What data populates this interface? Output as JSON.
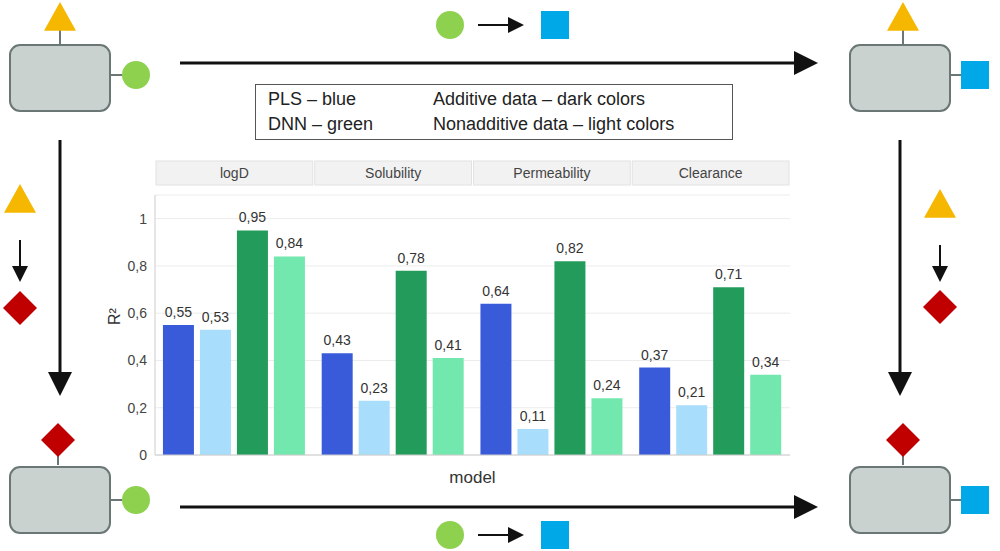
{
  "chart_data": {
    "type": "bar",
    "categories": [
      "logD",
      "Solubility",
      "Permeability",
      "Clearance"
    ],
    "x_label": "model",
    "y_label": "R²",
    "ylim": [
      0,
      1.1
    ],
    "yticks": [
      0,
      {
        "value": 0.2,
        "label": "0,2"
      },
      {
        "value": 0.4,
        "label": "0,4"
      },
      {
        "value": 0.6,
        "label": "0,6"
      },
      {
        "value": 0.8,
        "label": "0,8"
      },
      1
    ],
    "grid": true,
    "data_labels": true,
    "annotations": [
      "PLS – blue",
      "DNN – green",
      "Additive data – dark colors",
      "Nonadditive data – light colors"
    ],
    "series": [
      {
        "color": "#3A5BD9",
        "values": [
          0.55,
          0.43,
          0.64,
          0.37
        ],
        "value_labels": [
          "0,55",
          "0,43",
          "0,64",
          "0,37"
        ]
      },
      {
        "color": "#A8DDFB",
        "values": [
          0.53,
          0.23,
          0.11,
          0.21
        ],
        "value_labels": [
          "0,53",
          "0,23",
          "0,11",
          "0,21"
        ]
      },
      {
        "color": "#239B5A",
        "values": [
          0.95,
          0.78,
          0.82,
          0.71
        ],
        "value_labels": [
          "0,95",
          "0,78",
          "0,82",
          "0,71"
        ]
      },
      {
        "color": "#72E8AE",
        "values": [
          0.84,
          0.41,
          0.24,
          0.34
        ],
        "value_labels": [
          "0,84",
          "0,41",
          "0,24",
          "0,34"
        ]
      }
    ]
  }
}
